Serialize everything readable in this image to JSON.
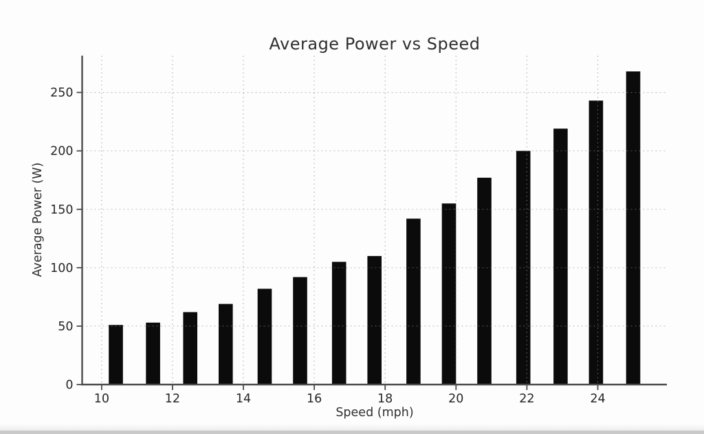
{
  "figure": {
    "title": "Average Power vs Speed",
    "xlabel": "Speed (mph)",
    "ylabel": "Average Power (W)"
  },
  "chart_data": {
    "type": "bar",
    "title": "Average Power vs Speed",
    "xlabel": "Speed (mph)",
    "ylabel": "Average Power (W)",
    "x": [
      10.4,
      11.45,
      12.5,
      13.5,
      14.6,
      15.6,
      16.7,
      17.7,
      18.8,
      19.8,
      20.8,
      21.9,
      22.95,
      23.95,
      25.0
    ],
    "values": [
      51,
      53,
      62,
      69,
      82,
      92,
      105,
      110,
      142,
      155,
      177,
      200,
      219,
      243,
      268
    ],
    "bar_width_x_units": 0.4,
    "bar_color": "#0b0b0b",
    "xticks": [
      10,
      12,
      14,
      16,
      18,
      20,
      22,
      24
    ],
    "yticks": [
      0,
      50,
      100,
      150,
      200,
      250
    ],
    "xlim": [
      9.45,
      25.95
    ],
    "ylim": [
      0,
      281.5
    ],
    "grid": "dotted, light gray, drawn above bars",
    "grid_color": "rgba(140,140,140,0.5)",
    "spine_color": "#4b4b4b",
    "tick_label_color": "#262626",
    "legend_position": "none"
  }
}
